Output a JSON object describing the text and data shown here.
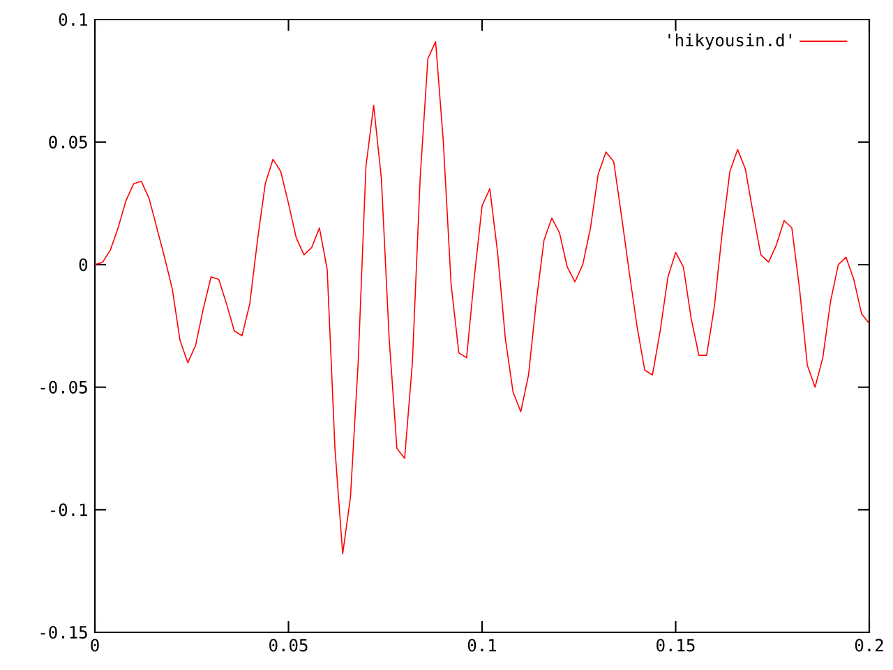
{
  "chart_data": {
    "type": "line",
    "x": [
      0,
      0.002,
      0.004,
      0.006,
      0.008,
      0.01,
      0.012,
      0.014,
      0.016,
      0.018,
      0.02,
      0.022,
      0.024,
      0.026,
      0.028,
      0.03,
      0.032,
      0.034,
      0.036,
      0.038,
      0.04,
      0.042,
      0.044,
      0.046,
      0.048,
      0.05,
      0.052,
      0.054,
      0.056,
      0.058,
      0.06,
      0.062,
      0.064,
      0.066,
      0.068,
      0.07,
      0.072,
      0.074,
      0.076,
      0.078,
      0.08,
      0.082,
      0.084,
      0.086,
      0.088,
      0.09,
      0.092,
      0.094,
      0.096,
      0.098,
      0.1,
      0.102,
      0.104,
      0.106,
      0.108,
      0.11,
      0.112,
      0.114,
      0.116,
      0.118,
      0.12,
      0.122,
      0.124,
      0.126,
      0.128,
      0.13,
      0.132,
      0.134,
      0.136,
      0.138,
      0.14,
      0.142,
      0.144,
      0.146,
      0.148,
      0.15,
      0.152,
      0.154,
      0.156,
      0.158,
      0.16,
      0.162,
      0.164,
      0.166,
      0.168,
      0.17,
      0.172,
      0.174,
      0.176,
      0.178,
      0.18,
      0.182,
      0.184,
      0.186,
      0.188,
      0.19,
      0.192,
      0.194,
      0.196,
      0.198,
      0.2
    ],
    "series": [
      {
        "name": "'hikyousin.d'",
        "color": "#ff0000",
        "values": [
          0,
          0.001,
          0.006,
          0.015,
          0.026,
          0.033,
          0.034,
          0.027,
          0.015,
          0.003,
          -0.01,
          -0.031,
          -0.04,
          -0.033,
          -0.018,
          -0.005,
          -0.006,
          -0.016,
          -0.027,
          -0.029,
          -0.016,
          0.01,
          0.033,
          0.043,
          0.038,
          0.025,
          0.011,
          0.004,
          0.007,
          0.015,
          -0.002,
          -0.075,
          -0.118,
          -0.095,
          -0.04,
          0.04,
          0.065,
          0.035,
          -0.03,
          -0.075,
          -0.079,
          -0.04,
          0.035,
          0.084,
          0.091,
          0.05,
          -0.008,
          -0.036,
          -0.038,
          -0.005,
          0.024,
          0.031,
          0.005,
          -0.03,
          -0.052,
          -0.06,
          -0.045,
          -0.015,
          0.01,
          0.019,
          0.013,
          -0.001,
          -0.007,
          0,
          0.015,
          0.037,
          0.046,
          0.042,
          0.02,
          -0.003,
          -0.025,
          -0.043,
          -0.045,
          -0.027,
          -0.005,
          0.005,
          -0.001,
          -0.022,
          -0.037,
          -0.037,
          -0.017,
          0.013,
          0.038,
          0.047,
          0.039,
          0.021,
          0.004,
          0.001,
          0.008,
          0.018,
          0.015,
          -0.01,
          -0.041,
          -0.05,
          -0.038,
          -0.015,
          0,
          0.003,
          -0.006,
          -0.02,
          -0.024
        ]
      }
    ],
    "xlim": [
      0,
      0.2
    ],
    "ylim": [
      -0.15,
      0.1
    ],
    "xticks": [
      0,
      0.05,
      0.1,
      0.15,
      0.2
    ],
    "yticks": [
      -0.15,
      -0.1,
      -0.05,
      0,
      0.05,
      0.1
    ],
    "legend": "top right",
    "grid": false,
    "marker": "none",
    "line_style": "solid"
  }
}
